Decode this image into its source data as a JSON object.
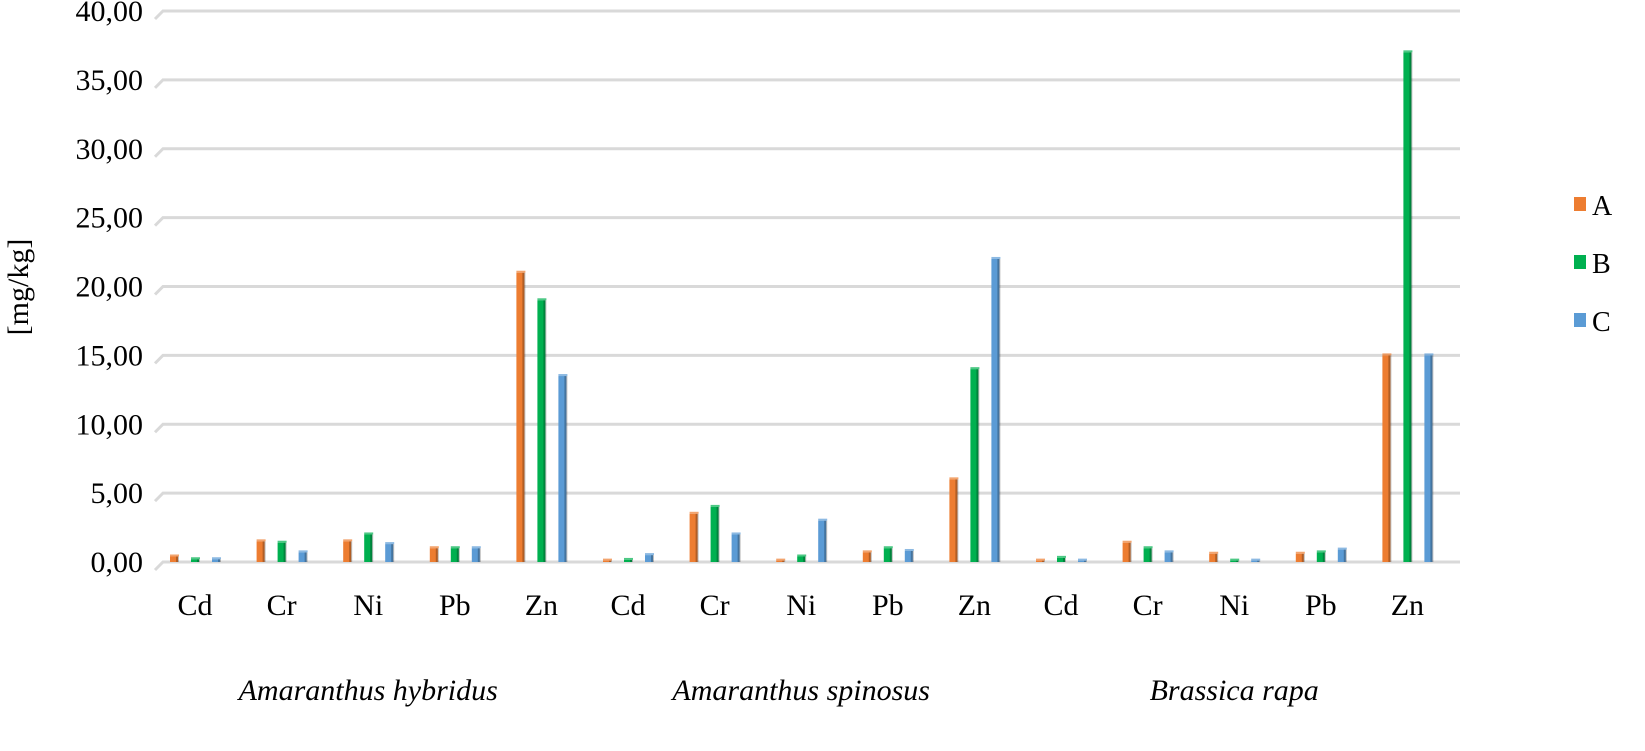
{
  "chart_data": {
    "type": "bar",
    "title": "",
    "xlabel": "",
    "ylabel": "[mg/kg]",
    "ylim": [
      0,
      40
    ],
    "yticks": [
      "0,00",
      "5,00",
      "10,00",
      "15,00",
      "20,00",
      "25,00",
      "30,00",
      "35,00",
      "40,00"
    ],
    "grid": true,
    "legend_position": "right",
    "groups": [
      "Amaranthus hybridus",
      "Amaranthus spinosus",
      "Brassica rapa"
    ],
    "categories": [
      "Cd",
      "Cr",
      "Ni",
      "Pb",
      "Zn",
      "Cd",
      "Cr",
      "Ni",
      "Pb",
      "Zn",
      "Cd",
      "Cr",
      "Ni",
      "Pb",
      "Zn"
    ],
    "series": [
      {
        "name": "A",
        "color": "#ED7D31",
        "values": [
          0.4,
          1.5,
          1.5,
          1.0,
          21.0,
          0.1,
          3.5,
          0.1,
          0.7,
          6.0,
          0.1,
          1.4,
          0.6,
          0.6,
          15.0
        ]
      },
      {
        "name": "B",
        "color": "#00B050",
        "values": [
          0.2,
          1.4,
          2.0,
          1.0,
          19.0,
          0.15,
          4.0,
          0.4,
          1.0,
          14.0,
          0.3,
          1.0,
          0.1,
          0.7,
          37.0
        ]
      },
      {
        "name": "C",
        "color": "#5B9BD5",
        "values": [
          0.2,
          0.7,
          1.3,
          1.0,
          13.5,
          0.5,
          2.0,
          3.0,
          0.8,
          22.0,
          0.1,
          0.7,
          0.1,
          0.9,
          15.0
        ]
      }
    ]
  }
}
